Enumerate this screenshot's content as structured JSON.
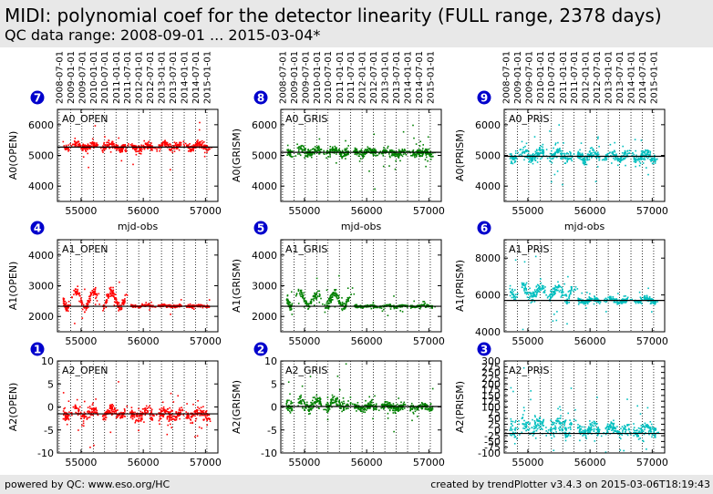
{
  "header": {
    "title": "MIDI: polynomial coef for the detector linearity (FULL range, 2378 days)",
    "subtitle": "QC data range: 2008-09-01 ... 2015-03-04*"
  },
  "footer": {
    "left": "powered by QC: www.eso.org/HC",
    "right": "created by trendPlotter v3.4.3 on 2015-03-06T18:19:43"
  },
  "chart_data": [
    {
      "type": "scatter",
      "badge": "7",
      "label": "A0_OPEN",
      "ylabel": "A0(OPEN)",
      "xlabel": "mjd-obs",
      "color": "#ff0000",
      "ylim": [
        3500,
        6500
      ],
      "yticks": [
        4000,
        5000,
        6000
      ],
      "ref": 5270,
      "xticks": [
        55000,
        56000,
        57000
      ],
      "xlim": [
        54620,
        57200
      ],
      "date_ticks": [
        "2008-07-01",
        "2009-01-01",
        "2009-07-01",
        "2010-01-01",
        "2010-07-01",
        "2011-01-01",
        "2011-07-01",
        "2012-01-01",
        "2012-07-01",
        "2013-01-01",
        "2013-07-01",
        "2014-01-01",
        "2014-07-01",
        "2015-01-01"
      ],
      "segments": [
        {
          "x": [
            54710,
            55100
          ],
          "mean": 5320,
          "amp": 90,
          "sd": 120
        },
        {
          "x": [
            55100,
            55700
          ],
          "mean": 5300,
          "amp": 80,
          "sd": 110
        },
        {
          "x": [
            55700,
            56200
          ],
          "mean": 5260,
          "amp": 60,
          "sd": 120
        },
        {
          "x": [
            56200,
            57100
          ],
          "mean": 5300,
          "amp": 80,
          "sd": 120
        }
      ]
    },
    {
      "type": "scatter",
      "badge": "8",
      "label": "A0_GRIS",
      "ylabel": "A0(GRISM)",
      "xlabel": "mjd-obs",
      "color": "#008000",
      "ylim": [
        3500,
        6500
      ],
      "yticks": [
        4000,
        5000,
        6000
      ],
      "ref": 5100,
      "xticks": [
        55000,
        56000,
        57000
      ],
      "xlim": [
        54620,
        57200
      ],
      "date_ticks": [
        "2008-07-01",
        "2009-01-01",
        "2009-07-01",
        "2010-01-01",
        "2010-07-01",
        "2011-01-01",
        "2011-07-01",
        "2012-01-01",
        "2012-07-01",
        "2013-01-01",
        "2013-07-01",
        "2014-01-01",
        "2014-07-01",
        "2015-01-01"
      ],
      "segments": [
        {
          "x": [
            54710,
            55100
          ],
          "mean": 5150,
          "amp": 80,
          "sd": 130
        },
        {
          "x": [
            55100,
            55700
          ],
          "mean": 5120,
          "amp": 80,
          "sd": 130
        },
        {
          "x": [
            55700,
            56200
          ],
          "mean": 5100,
          "amp": 60,
          "sd": 120
        },
        {
          "x": [
            56200,
            57100
          ],
          "mean": 5080,
          "amp": 60,
          "sd": 120
        }
      ]
    },
    {
      "type": "scatter",
      "badge": "9",
      "label": "A0_PRIS",
      "ylabel": "A0(PRISM)",
      "xlabel": "mjd-obs",
      "color": "#00bfbf",
      "ylim": [
        3500,
        6500
      ],
      "yticks": [
        4000,
        5000,
        6000
      ],
      "ref": 4970,
      "xticks": [
        55000,
        56000,
        57000
      ],
      "xlim": [
        54620,
        57200
      ],
      "date_ticks": [
        "2008-07-01",
        "2009-01-01",
        "2009-07-01",
        "2010-01-01",
        "2010-07-01",
        "2011-01-01",
        "2011-07-01",
        "2012-01-01",
        "2012-07-01",
        "2013-01-01",
        "2013-07-01",
        "2014-01-01",
        "2014-07-01",
        "2015-01-01"
      ],
      "segments": [
        {
          "x": [
            54710,
            55100
          ],
          "mean": 5000,
          "amp": 120,
          "sd": 180
        },
        {
          "x": [
            55100,
            55700
          ],
          "mean": 5000,
          "amp": 120,
          "sd": 180
        },
        {
          "x": [
            55700,
            56200
          ],
          "mean": 4980,
          "amp": 100,
          "sd": 160
        },
        {
          "x": [
            56200,
            57100
          ],
          "mean": 4960,
          "amp": 100,
          "sd": 150
        }
      ]
    },
    {
      "type": "scatter",
      "badge": "4",
      "label": "A1_OPEN",
      "ylabel": "A1(OPEN)",
      "xlabel": "",
      "color": "#ff0000",
      "ylim": [
        1500,
        4500
      ],
      "yticks": [
        2000,
        3000,
        4000
      ],
      "ref": 2330,
      "xticks": [
        55000,
        56000,
        57000
      ],
      "xlim": [
        54620,
        57200
      ],
      "date_ticks": [],
      "segments": [
        {
          "x": [
            54710,
            55100
          ],
          "mean": 2550,
          "amp": 250,
          "sd": 150
        },
        {
          "x": [
            55100,
            55800
          ],
          "mean": 2550,
          "amp": 250,
          "sd": 150
        },
        {
          "x": [
            55800,
            57100
          ],
          "mean": 2340,
          "amp": 20,
          "sd": 40
        }
      ]
    },
    {
      "type": "scatter",
      "badge": "5",
      "label": "A1_GRIS",
      "ylabel": "A1(GRISM)",
      "xlabel": "",
      "color": "#008000",
      "ylim": [
        1500,
        4500
      ],
      "yticks": [
        2000,
        3000,
        4000
      ],
      "ref": 2330,
      "xticks": [
        55000,
        56000,
        57000
      ],
      "xlim": [
        54620,
        57200
      ],
      "date_ticks": [],
      "segments": [
        {
          "x": [
            54710,
            55100
          ],
          "mean": 2560,
          "amp": 220,
          "sd": 140
        },
        {
          "x": [
            55100,
            55800
          ],
          "mean": 2540,
          "amp": 220,
          "sd": 140
        },
        {
          "x": [
            55800,
            57100
          ],
          "mean": 2330,
          "amp": 20,
          "sd": 40
        }
      ]
    },
    {
      "type": "scatter",
      "badge": "6",
      "label": "A1_PRIS",
      "ylabel": "A1(PRISM)",
      "xlabel": "",
      "color": "#00bfbf",
      "ylim": [
        4000,
        9000
      ],
      "yticks": [
        4000,
        6000,
        8000
      ],
      "ref": 5700,
      "xticks": [
        55000,
        56000,
        57000
      ],
      "xlim": [
        54620,
        57200
      ],
      "date_ticks": [],
      "segments": [
        {
          "x": [
            54710,
            55100
          ],
          "mean": 6200,
          "amp": 300,
          "sd": 300
        },
        {
          "x": [
            55100,
            55800
          ],
          "mean": 6150,
          "amp": 300,
          "sd": 300
        },
        {
          "x": [
            55800,
            57100
          ],
          "mean": 5700,
          "amp": 80,
          "sd": 150
        }
      ]
    },
    {
      "type": "scatter",
      "badge": "1",
      "label": "A2_OPEN",
      "ylabel": "A2(OPEN)",
      "xlabel": "",
      "color": "#ff0000",
      "ylim": [
        -10,
        10
      ],
      "yticks": [
        -10,
        -5,
        0,
        5,
        10
      ],
      "ref": -1.5,
      "xticks": [
        55000,
        56000,
        57000
      ],
      "xlim": [
        54620,
        57200
      ],
      "date_ticks": [],
      "segments": [
        {
          "x": [
            54710,
            55100
          ],
          "mean": -1.3,
          "amp": 0.8,
          "sd": 1.3
        },
        {
          "x": [
            55100,
            55800
          ],
          "mean": -1.3,
          "amp": 0.8,
          "sd": 1.3
        },
        {
          "x": [
            55800,
            57100
          ],
          "mean": -1.6,
          "amp": 0.6,
          "sd": 1.2
        }
      ]
    },
    {
      "type": "scatter",
      "badge": "2",
      "label": "A2_GRIS",
      "ylabel": "A2(GRISM)",
      "xlabel": "",
      "color": "#008000",
      "ylim": [
        -10,
        10
      ],
      "yticks": [
        -10,
        -5,
        0,
        5,
        10
      ],
      "ref": 0.1,
      "xticks": [
        55000,
        56000,
        57000
      ],
      "xlim": [
        54620,
        57200
      ],
      "date_ticks": [],
      "segments": [
        {
          "x": [
            54710,
            55100
          ],
          "mean": 0.6,
          "amp": 0.8,
          "sd": 1.2
        },
        {
          "x": [
            55100,
            55800
          ],
          "mean": 0.6,
          "amp": 0.8,
          "sd": 1.2
        },
        {
          "x": [
            55800,
            57100
          ],
          "mean": 0.0,
          "amp": 0.4,
          "sd": 0.8
        }
      ]
    },
    {
      "type": "scatter",
      "badge": "3",
      "label": "A2_PRIS",
      "ylabel": "A2(PRISM)",
      "xlabel": "",
      "color": "#00bfbf",
      "ylim": [
        -100,
        300
      ],
      "yticks": [
        -100,
        -75,
        -50,
        -25,
        0,
        25,
        50,
        75,
        100,
        125,
        150,
        175,
        200,
        225,
        250,
        275,
        300
      ],
      "ref": -15,
      "xticks": [
        55000,
        56000,
        57000
      ],
      "xlim": [
        54620,
        57200
      ],
      "date_ticks": [],
      "segments": [
        {
          "x": [
            54710,
            55100
          ],
          "mean": 10,
          "amp": 20,
          "sd": 45
        },
        {
          "x": [
            55100,
            55800
          ],
          "mean": 10,
          "amp": 20,
          "sd": 45
        },
        {
          "x": [
            55800,
            57100
          ],
          "mean": 0,
          "amp": 15,
          "sd": 25
        }
      ]
    }
  ]
}
